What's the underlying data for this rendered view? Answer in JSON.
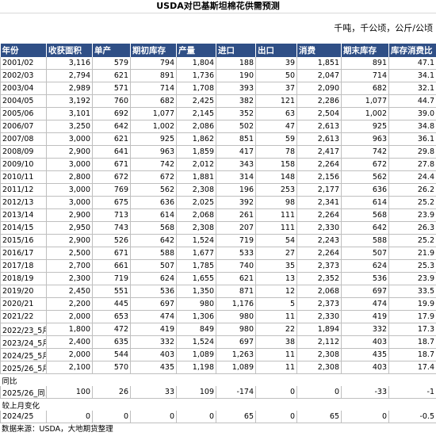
{
  "title": "USDA对巴基斯坦棉花供需预测",
  "units": "千吨，千公顷，公斤/公顷",
  "headers": [
    "年份",
    "收获面积",
    "单产",
    "期初库存",
    "产量",
    "进口",
    "出口",
    "消费",
    "期末库存",
    "库存消费比"
  ],
  "rows": [
    [
      "2001/02",
      "3,116",
      "579",
      "794",
      "1,804",
      "188",
      "39",
      "1,851",
      "891",
      "47.1"
    ],
    [
      "2002/03",
      "2,794",
      "621",
      "891",
      "1,736",
      "190",
      "50",
      "2,047",
      "714",
      "34.1"
    ],
    [
      "2003/04",
      "2,989",
      "571",
      "714",
      "1,708",
      "393",
      "37",
      "2,090",
      "682",
      "32.1"
    ],
    [
      "2004/05",
      "3,192",
      "760",
      "682",
      "2,425",
      "382",
      "121",
      "2,286",
      "1,077",
      "44.7"
    ],
    [
      "2005/06",
      "3,101",
      "692",
      "1,077",
      "2,145",
      "352",
      "63",
      "2,504",
      "1,002",
      "39.0"
    ],
    [
      "2006/07",
      "3,250",
      "642",
      "1,002",
      "2,086",
      "502",
      "47",
      "2,613",
      "925",
      "34.8"
    ],
    [
      "2007/08",
      "3,000",
      "621",
      "925",
      "1,862",
      "851",
      "59",
      "2,613",
      "963",
      "36.1"
    ],
    [
      "2008/09",
      "2,900",
      "641",
      "963",
      "1,859",
      "417",
      "78",
      "2,417",
      "742",
      "29.8"
    ],
    [
      "2009/10",
      "3,000",
      "671",
      "742",
      "2,012",
      "343",
      "158",
      "2,264",
      "672",
      "27.8"
    ],
    [
      "2010/11",
      "2,800",
      "672",
      "672",
      "1,881",
      "314",
      "148",
      "2,156",
      "562",
      "24.4"
    ],
    [
      "2011/12",
      "3,000",
      "769",
      "562",
      "2,308",
      "196",
      "253",
      "2,177",
      "636",
      "26.2"
    ],
    [
      "2012/13",
      "3,000",
      "675",
      "636",
      "2,025",
      "392",
      "98",
      "2,341",
      "614",
      "25.2"
    ],
    [
      "2013/14",
      "2,900",
      "713",
      "614",
      "2,068",
      "261",
      "111",
      "2,264",
      "568",
      "23.9"
    ],
    [
      "2014/15",
      "2,950",
      "743",
      "568",
      "2,308",
      "207",
      "111",
      "2,330",
      "642",
      "26.3"
    ],
    [
      "2015/16",
      "2,900",
      "526",
      "642",
      "1,524",
      "719",
      "54",
      "2,243",
      "588",
      "25.2"
    ],
    [
      "2016/17",
      "2,500",
      "671",
      "588",
      "1,677",
      "533",
      "27",
      "2,264",
      "507",
      "21.9"
    ],
    [
      "2017/18",
      "2,700",
      "661",
      "507",
      "1,785",
      "740",
      "35",
      "2,373",
      "624",
      "25.3"
    ],
    [
      "2018/19",
      "2,300",
      "719",
      "624",
      "1,655",
      "621",
      "13",
      "2,352",
      "536",
      "23.9"
    ],
    [
      "2019/20",
      "2,450",
      "551",
      "536",
      "1,350",
      "871",
      "12",
      "2,068",
      "697",
      "33.5"
    ],
    [
      "2020/21",
      "2,200",
      "445",
      "697",
      "980",
      "1,176",
      "5",
      "2,373",
      "474",
      "19.9"
    ],
    [
      "2021/22",
      "2,000",
      "653",
      "474",
      "1,306",
      "980",
      "11",
      "2,330",
      "419",
      "17.9"
    ],
    [
      "2022/23_5月",
      "1,800",
      "472",
      "419",
      "849",
      "980",
      "22",
      "1,894",
      "332",
      "17.3"
    ],
    [
      "2023/24_5月",
      "2,400",
      "635",
      "332",
      "1,524",
      "697",
      "38",
      "2,112",
      "403",
      "18.7"
    ],
    [
      "2024/25_5月",
      "2,000",
      "544",
      "403",
      "1,089",
      "1,263",
      "11",
      "2,308",
      "435",
      "18.7"
    ],
    [
      "2025/26_5月",
      "2,100",
      "570",
      "435",
      "1,198",
      "1,089",
      "11",
      "2,308",
      "403",
      "17.4"
    ]
  ],
  "yoy_label": "同比",
  "yoy_row": [
    "2025/26_同比",
    "100",
    "26",
    "33",
    "109",
    "-174",
    "0",
    "0",
    "-33",
    "-1"
  ],
  "mom_label": "较上月变化",
  "mom_row": [
    "2024/25",
    "0",
    "0",
    "0",
    "0",
    "65",
    "0",
    "65",
    "0",
    "-0.5"
  ],
  "source": "数据来源：USDA，大地期货整理",
  "colors": {
    "header_bg": "#2f4f86",
    "header_text": "#ffffff",
    "grid": "#bfbfbf"
  }
}
